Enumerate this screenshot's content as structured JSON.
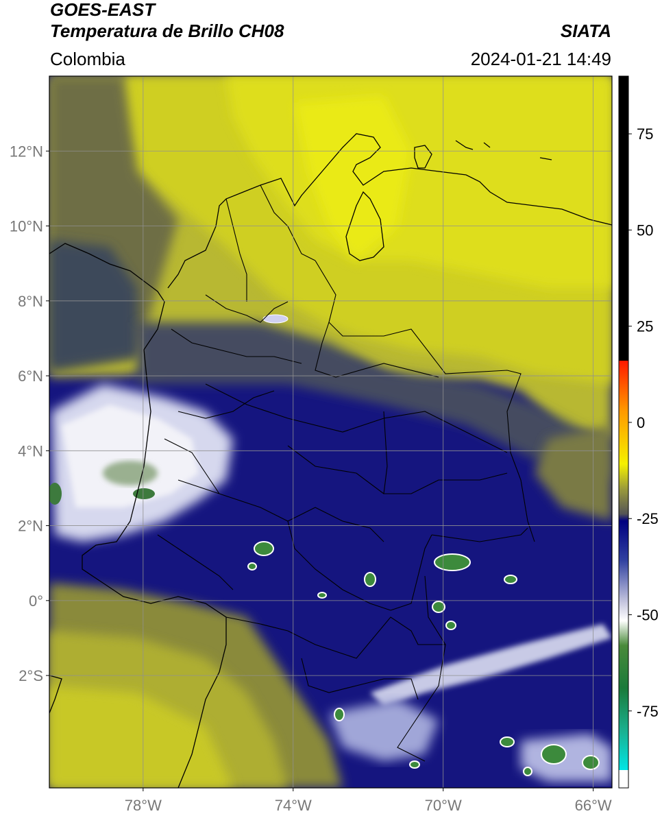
{
  "header": {
    "satellite": "GOES-EAST",
    "product": "Temperatura de Brillo CH08",
    "region": "Colombia",
    "institution": "SIATA",
    "datetime": "2024-01-21 14:49"
  },
  "map": {
    "lon_range": [
      -80.5,
      -65.5
    ],
    "lat_range": [
      -5.0,
      14.0
    ],
    "lat_ticks": [
      {
        "value": 12,
        "label": "12°N"
      },
      {
        "value": 10,
        "label": "10°N"
      },
      {
        "value": 8,
        "label": "8°N"
      },
      {
        "value": 6,
        "label": "6°N"
      },
      {
        "value": 4,
        "label": "4°N"
      },
      {
        "value": 2,
        "label": "2°N"
      },
      {
        "value": 0,
        "label": "0°"
      },
      {
        "value": -2,
        "label": "2°S"
      }
    ],
    "lon_ticks": [
      {
        "value": -78,
        "label": "78°W"
      },
      {
        "value": -74,
        "label": "74°W"
      },
      {
        "value": -70,
        "label": "70°W"
      },
      {
        "value": -66,
        "label": "66°W"
      }
    ],
    "grid": true
  },
  "colorbar": {
    "range": [
      -95,
      90
    ],
    "ticks": [
      {
        "value": 75,
        "label": "75"
      },
      {
        "value": 50,
        "label": "50"
      },
      {
        "value": 25,
        "label": "25"
      },
      {
        "value": 0,
        "label": "0"
      },
      {
        "value": -25,
        "label": "-25"
      },
      {
        "value": -50,
        "label": "-50"
      },
      {
        "value": -75,
        "label": "-75"
      }
    ],
    "colors": {
      "black": "#000000",
      "red": "#ff1a00",
      "orange": "#ff9900",
      "yellow": "#f5f000",
      "olive": "#9a9a3a",
      "grey": "#555555",
      "navy": "#000080",
      "white": "#ffffff",
      "green": "#2d7a2d",
      "teal": "#1ab090",
      "cyan": "#00e5e5"
    }
  }
}
